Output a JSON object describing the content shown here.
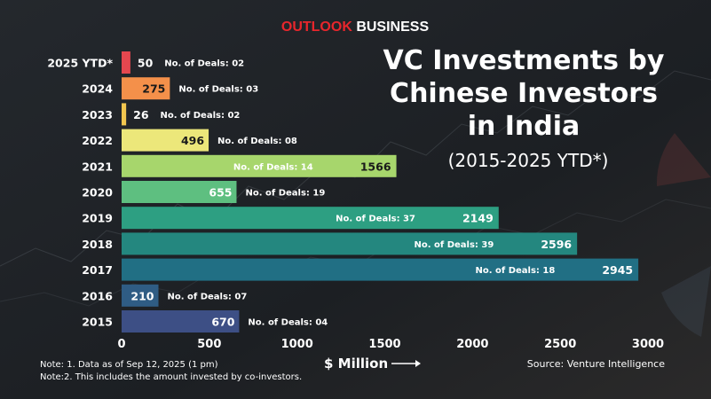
{
  "brand": {
    "part1": "OUTLOOK",
    "part2": " BUSINESS",
    "color1": "#e8262c",
    "color2": "#ffffff"
  },
  "chart_data": {
    "type": "bar",
    "orientation": "horizontal",
    "title_lines": [
      "VC Investments by",
      "Chinese Investors",
      "in India"
    ],
    "subtitle": "(2015-2025 YTD*)",
    "xlabel": "$ Million",
    "xlim": [
      0,
      3000
    ],
    "xticks": [
      0,
      500,
      1000,
      1500,
      2000,
      2500,
      3000
    ],
    "grid": false,
    "bars": [
      {
        "category": "2025 YTD*",
        "value": 50,
        "deals_label": "No. of Deals: 02",
        "color": "#e5474f"
      },
      {
        "category": "2024",
        "value": 275,
        "deals_label": "No. of Deals: 03",
        "color": "#f4904a"
      },
      {
        "category": "2023",
        "value": 26,
        "deals_label": "No. of Deals: 02",
        "color": "#f2c64f"
      },
      {
        "category": "2022",
        "value": 496,
        "deals_label": "No. of Deals: 08",
        "color": "#ece77a"
      },
      {
        "category": "2021",
        "value": 1566,
        "deals_label": "No. of Deals: 14",
        "color": "#a7d66c"
      },
      {
        "category": "2020",
        "value": 655,
        "deals_label": "No. of Deals: 19",
        "color": "#5ebf80"
      },
      {
        "category": "2019",
        "value": 2149,
        "deals_label": "No. of Deals: 37",
        "color": "#2d9f82"
      },
      {
        "category": "2018",
        "value": 2596,
        "deals_label": "No. of Deals: 39",
        "color": "#24877f"
      },
      {
        "category": "2017",
        "value": 2945,
        "deals_label": "No. of Deals: 18",
        "color": "#216f84"
      },
      {
        "category": "2016",
        "value": 210,
        "deals_label": "No. of Deals: 07",
        "color": "#2f5c84"
      },
      {
        "category": "2015",
        "value": 670,
        "deals_label": "No. of Deals: 04",
        "color": "#3d4f85"
      }
    ]
  },
  "notes": [
    "Note: 1. Data as of Sep 12, 2025 (1 pm)",
    "Note:2. This includes the amount invested by co-investors."
  ],
  "source": "Source: Venture Intelligence"
}
